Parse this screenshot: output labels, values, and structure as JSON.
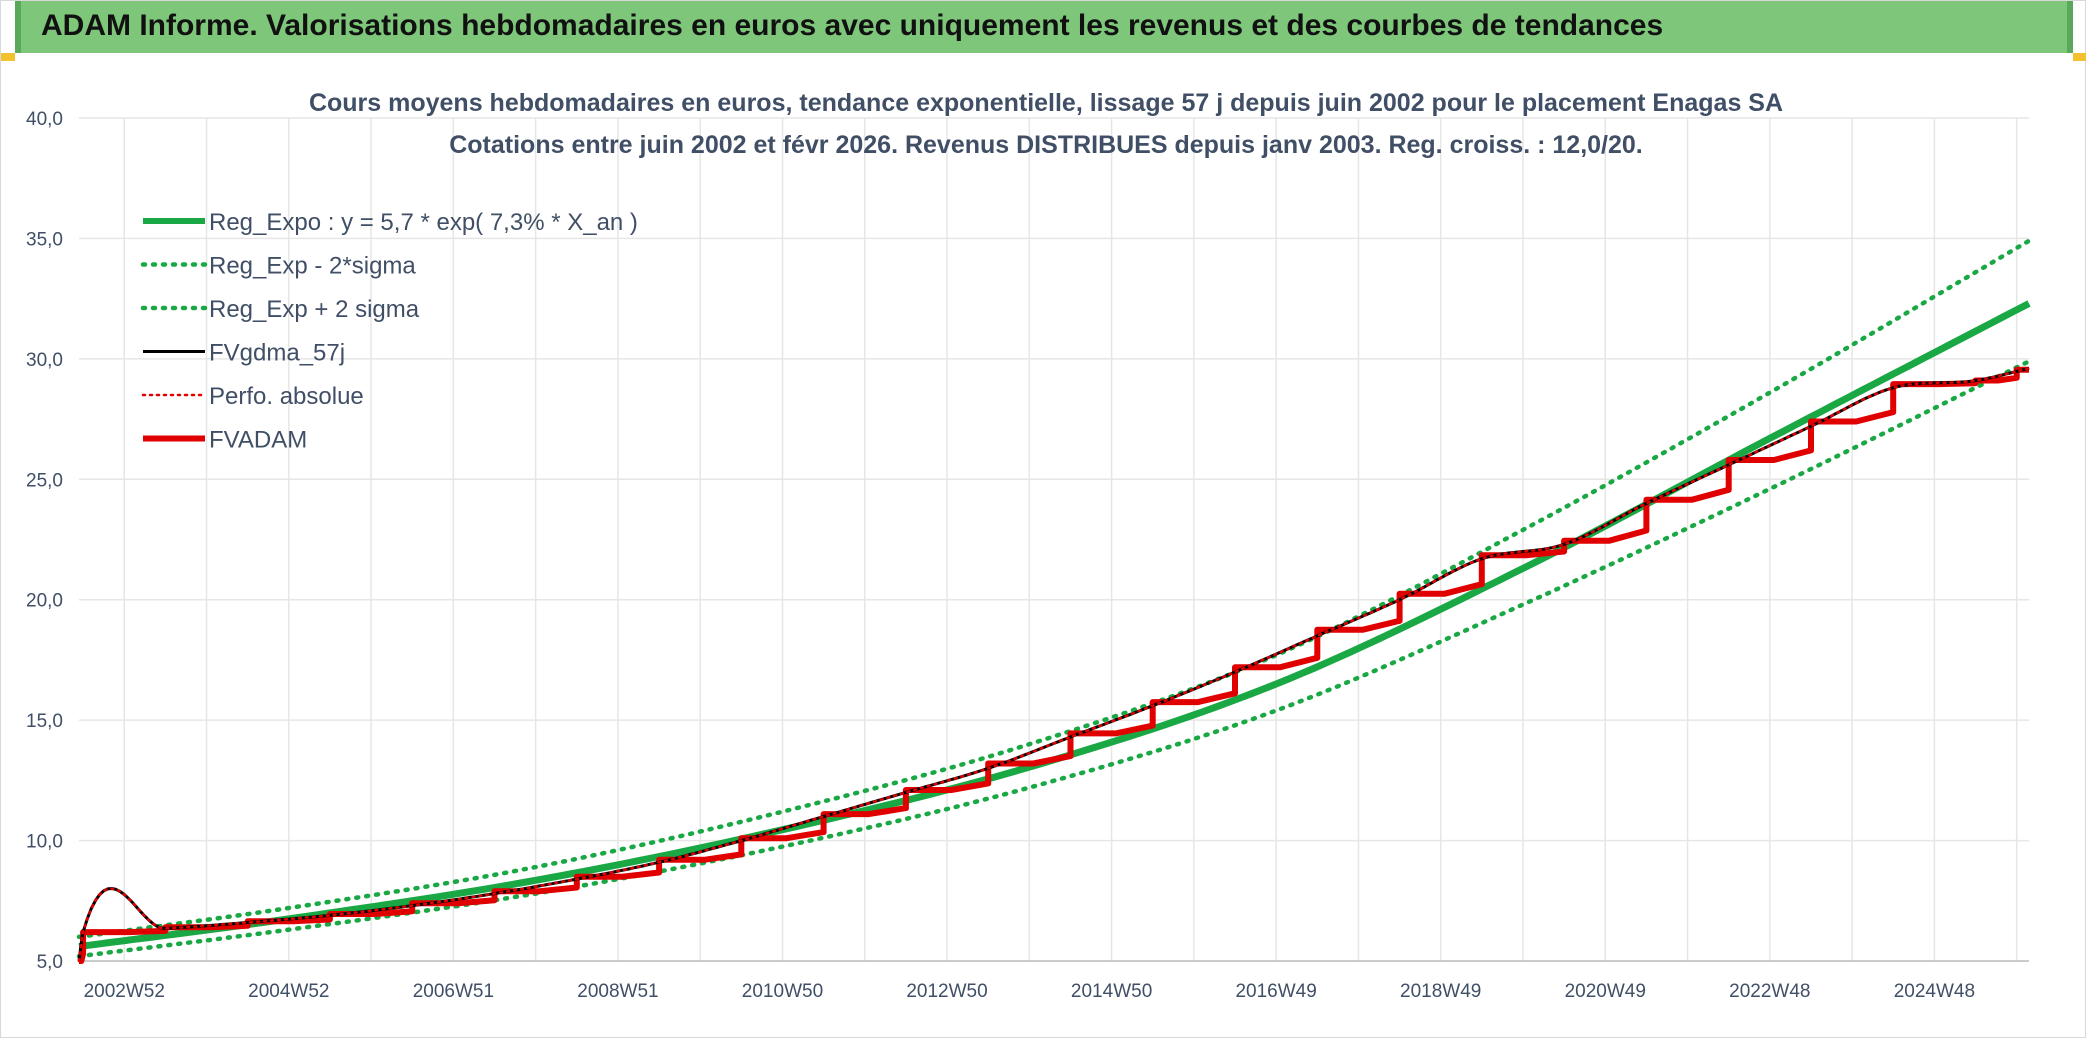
{
  "banner": {
    "title": "ADAM Informe. Valorisations hebdomadaires en euros avec uniquement les revenus et des courbes de tendances"
  },
  "colors": {
    "banner_bg": "#7dc67a",
    "reg_expo": "#1aa845",
    "band": "#1aa845",
    "fv_gdma": "#000000",
    "perfo": "#e00000",
    "fv_adam": "#e00000",
    "grid": "#e6e6e6"
  },
  "chart_data": {
    "type": "line",
    "title": "Cours moyens hebdomadaires en euros, tendance exponentielle, lissage 57 j depuis juin 2002 pour le placement Enagas SA",
    "subtitle": "Cotations entre juin 2002 et févr 2026. Revenus DISTRIBUES depuis janv 2003. Reg. croiss. : 12,0/20.",
    "ylim": [
      5,
      40
    ],
    "yticks": [
      "5,0",
      "10,0",
      "15,0",
      "20,0",
      "25,0",
      "30,0",
      "35,0",
      "40,0"
    ],
    "xticks": [
      "2002W52",
      "2004W52",
      "2006W51",
      "2008W51",
      "2010W50",
      "2012W50",
      "2014W50",
      "2016W49",
      "2018W49",
      "2020W49",
      "2022W48",
      "2024W48"
    ],
    "xtick_years": [
      2003.0,
      2005.0,
      2007.0,
      2009.0,
      2011.0,
      2013.0,
      2015.0,
      2017.0,
      2019.0,
      2021.0,
      2023.0,
      2025.0
    ],
    "xlim": [
      2002.45,
      2026.15
    ],
    "legend_position": "top-left",
    "grid": true,
    "series": [
      {
        "name": "Reg_Expo : y = 5,7 * exp( 7,3% *  X_an )",
        "style": "solid-thick",
        "color": "#1aa845",
        "points": [
          [
            2002.45,
            5.6
          ],
          [
            2005,
            6.75
          ],
          [
            2008,
            8.35
          ],
          [
            2011,
            10.45
          ],
          [
            2014,
            13.05
          ],
          [
            2017,
            16.5
          ],
          [
            2020,
            21.3
          ],
          [
            2023,
            26.7
          ],
          [
            2026.15,
            32.3
          ]
        ]
      },
      {
        "name": "Reg_Exp - 2*sigma",
        "style": "dotted",
        "color": "#1aa845",
        "points": [
          [
            2002.45,
            5.2
          ],
          [
            2005,
            6.3
          ],
          [
            2008,
            7.8
          ],
          [
            2011,
            9.75
          ],
          [
            2014,
            12.2
          ],
          [
            2017,
            15.4
          ],
          [
            2020,
            19.8
          ],
          [
            2023,
            24.6
          ],
          [
            2026.15,
            29.9
          ]
        ]
      },
      {
        "name": "Reg_Exp + 2 sigma",
        "style": "dotted",
        "color": "#1aa845",
        "points": [
          [
            2002.45,
            6.0
          ],
          [
            2005,
            7.2
          ],
          [
            2008,
            8.9
          ],
          [
            2011,
            11.2
          ],
          [
            2014,
            14.0
          ],
          [
            2017,
            17.7
          ],
          [
            2020,
            22.9
          ],
          [
            2023,
            28.6
          ],
          [
            2026.15,
            34.9
          ]
        ]
      },
      {
        "name": "FVgdma_57j",
        "style": "solid",
        "color": "#000000",
        "points": [
          [
            2002.45,
            5.0
          ],
          [
            2002.5,
            6.2
          ],
          [
            2003.5,
            6.35
          ],
          [
            2004.5,
            6.6
          ],
          [
            2005.5,
            6.9
          ],
          [
            2006.5,
            7.3
          ],
          [
            2007.5,
            7.8
          ],
          [
            2008.5,
            8.4
          ],
          [
            2009.5,
            9.1
          ],
          [
            2010.5,
            10.0
          ],
          [
            2011.5,
            11.0
          ],
          [
            2012.5,
            12.0
          ],
          [
            2013.5,
            13.0
          ],
          [
            2014.5,
            14.3
          ],
          [
            2015.5,
            15.6
          ],
          [
            2016.5,
            17.0
          ],
          [
            2017.5,
            18.5
          ],
          [
            2018.5,
            20.0
          ],
          [
            2019.5,
            21.7
          ],
          [
            2020.5,
            22.3
          ],
          [
            2021.5,
            24.0
          ],
          [
            2022.5,
            25.6
          ],
          [
            2023.5,
            27.2
          ],
          [
            2024.5,
            28.8
          ],
          [
            2025.5,
            29.1
          ],
          [
            2026.15,
            29.6
          ]
        ]
      },
      {
        "name": "Perfo. absolue",
        "style": "dotted-thin",
        "color": "#e00000",
        "points": [
          [
            2002.45,
            5.0
          ],
          [
            2002.5,
            6.2
          ],
          [
            2003.5,
            6.35
          ],
          [
            2004.5,
            6.6
          ],
          [
            2005.5,
            6.9
          ],
          [
            2006.5,
            7.3
          ],
          [
            2007.5,
            7.8
          ],
          [
            2008.5,
            8.4
          ],
          [
            2009.5,
            9.1
          ],
          [
            2010.5,
            10.0
          ],
          [
            2011.5,
            11.0
          ],
          [
            2012.5,
            12.0
          ],
          [
            2013.5,
            13.0
          ],
          [
            2014.5,
            14.3
          ],
          [
            2015.5,
            15.6
          ],
          [
            2016.5,
            17.0
          ],
          [
            2017.5,
            18.5
          ],
          [
            2018.5,
            20.0
          ],
          [
            2019.5,
            21.7
          ],
          [
            2020.5,
            22.3
          ],
          [
            2021.5,
            24.0
          ],
          [
            2022.5,
            25.6
          ],
          [
            2023.5,
            27.2
          ],
          [
            2024.5,
            28.8
          ],
          [
            2025.5,
            29.1
          ],
          [
            2026.15,
            29.6
          ]
        ]
      },
      {
        "name": "FVADAM",
        "style": "step-thick",
        "color": "#e00000",
        "steps": [
          [
            2002.45,
            5.0
          ],
          [
            2002.5,
            6.2
          ],
          [
            2003.5,
            6.4
          ],
          [
            2004.5,
            6.65
          ],
          [
            2005.5,
            6.95
          ],
          [
            2006.5,
            7.4
          ],
          [
            2007.5,
            7.9
          ],
          [
            2008.5,
            8.5
          ],
          [
            2009.5,
            9.2
          ],
          [
            2010.5,
            10.1
          ],
          [
            2011.5,
            11.1
          ],
          [
            2012.5,
            12.1
          ],
          [
            2013.5,
            13.2
          ],
          [
            2014.5,
            14.45
          ],
          [
            2015.5,
            15.75
          ],
          [
            2016.5,
            17.2
          ],
          [
            2017.5,
            18.75
          ],
          [
            2018.5,
            20.25
          ],
          [
            2019.5,
            21.85
          ],
          [
            2020.5,
            22.45
          ],
          [
            2021.5,
            24.15
          ],
          [
            2022.5,
            25.8
          ],
          [
            2023.5,
            27.4
          ],
          [
            2024.5,
            28.95
          ],
          [
            2025.5,
            29.1
          ],
          [
            2026.0,
            29.55
          ]
        ],
        "end_x": 2026.15
      }
    ]
  }
}
